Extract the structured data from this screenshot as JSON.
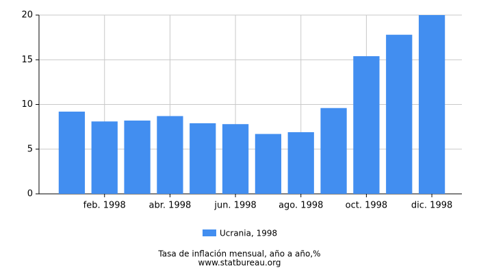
{
  "chart_data": {
    "type": "bar",
    "categories": [
      null,
      "feb. 1998",
      null,
      "abr. 1998",
      null,
      "jun. 1998",
      null,
      "ago. 1998",
      null,
      "oct. 1998",
      null,
      "dic. 1998"
    ],
    "series": [
      {
        "name": "Ucrania, 1998",
        "color": "#428ef0",
        "values": [
          9.2,
          8.1,
          8.2,
          8.7,
          7.9,
          7.8,
          6.7,
          6.9,
          9.6,
          15.4,
          17.8,
          20.0
        ]
      }
    ],
    "ylim": [
      0,
      20
    ],
    "yticks": [
      0,
      5,
      10,
      15,
      20
    ],
    "grid": true,
    "title": "Tasa de inflación mensual, año a año,%",
    "source": "www.statbureau.org"
  }
}
